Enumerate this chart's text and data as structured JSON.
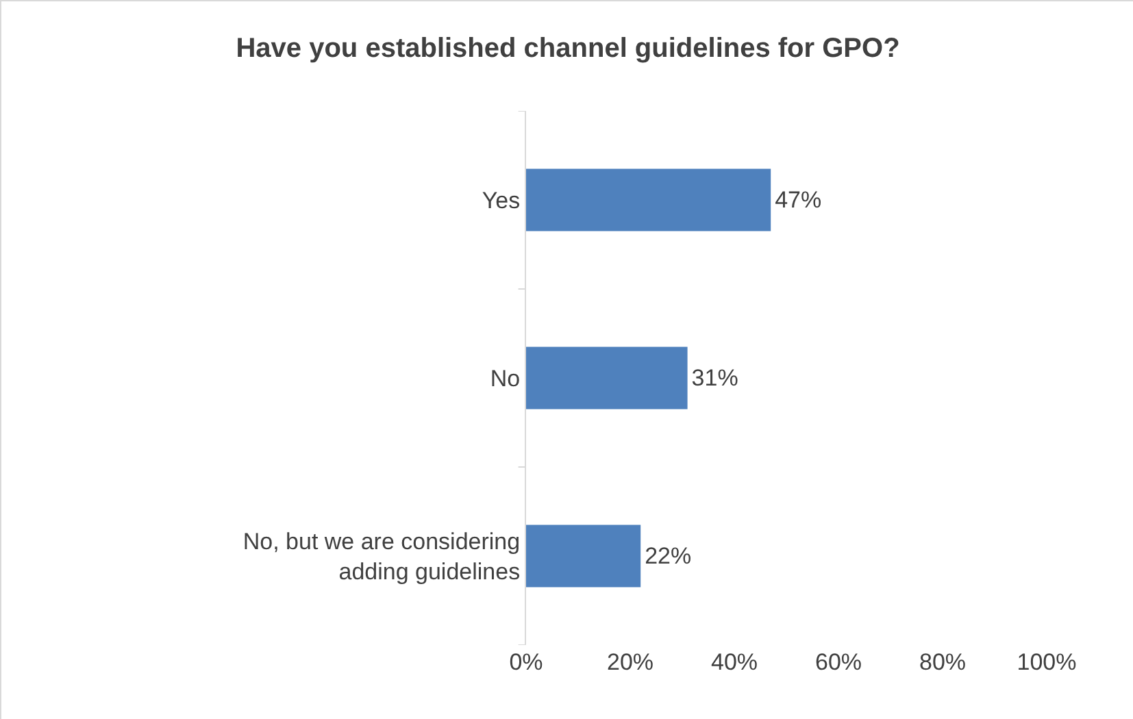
{
  "chart_data": {
    "type": "bar",
    "orientation": "horizontal",
    "title": "Have you established channel guidelines for GPO?",
    "categories": [
      "Yes",
      "No",
      "No, but we are considering adding guidelines"
    ],
    "values": [
      47,
      31,
      22
    ],
    "value_labels": [
      "47%",
      "31%",
      "22%"
    ],
    "color": "#4f81bd",
    "xlim": [
      0,
      100
    ],
    "xticks": [
      {
        "value": 0,
        "label": "0%"
      },
      {
        "value": 20,
        "label": "20%"
      },
      {
        "value": 40,
        "label": "40%"
      },
      {
        "value": 60,
        "label": "60%"
      },
      {
        "value": 80,
        "label": "80%"
      },
      {
        "value": 100,
        "label": "100%"
      }
    ],
    "grid": false
  }
}
